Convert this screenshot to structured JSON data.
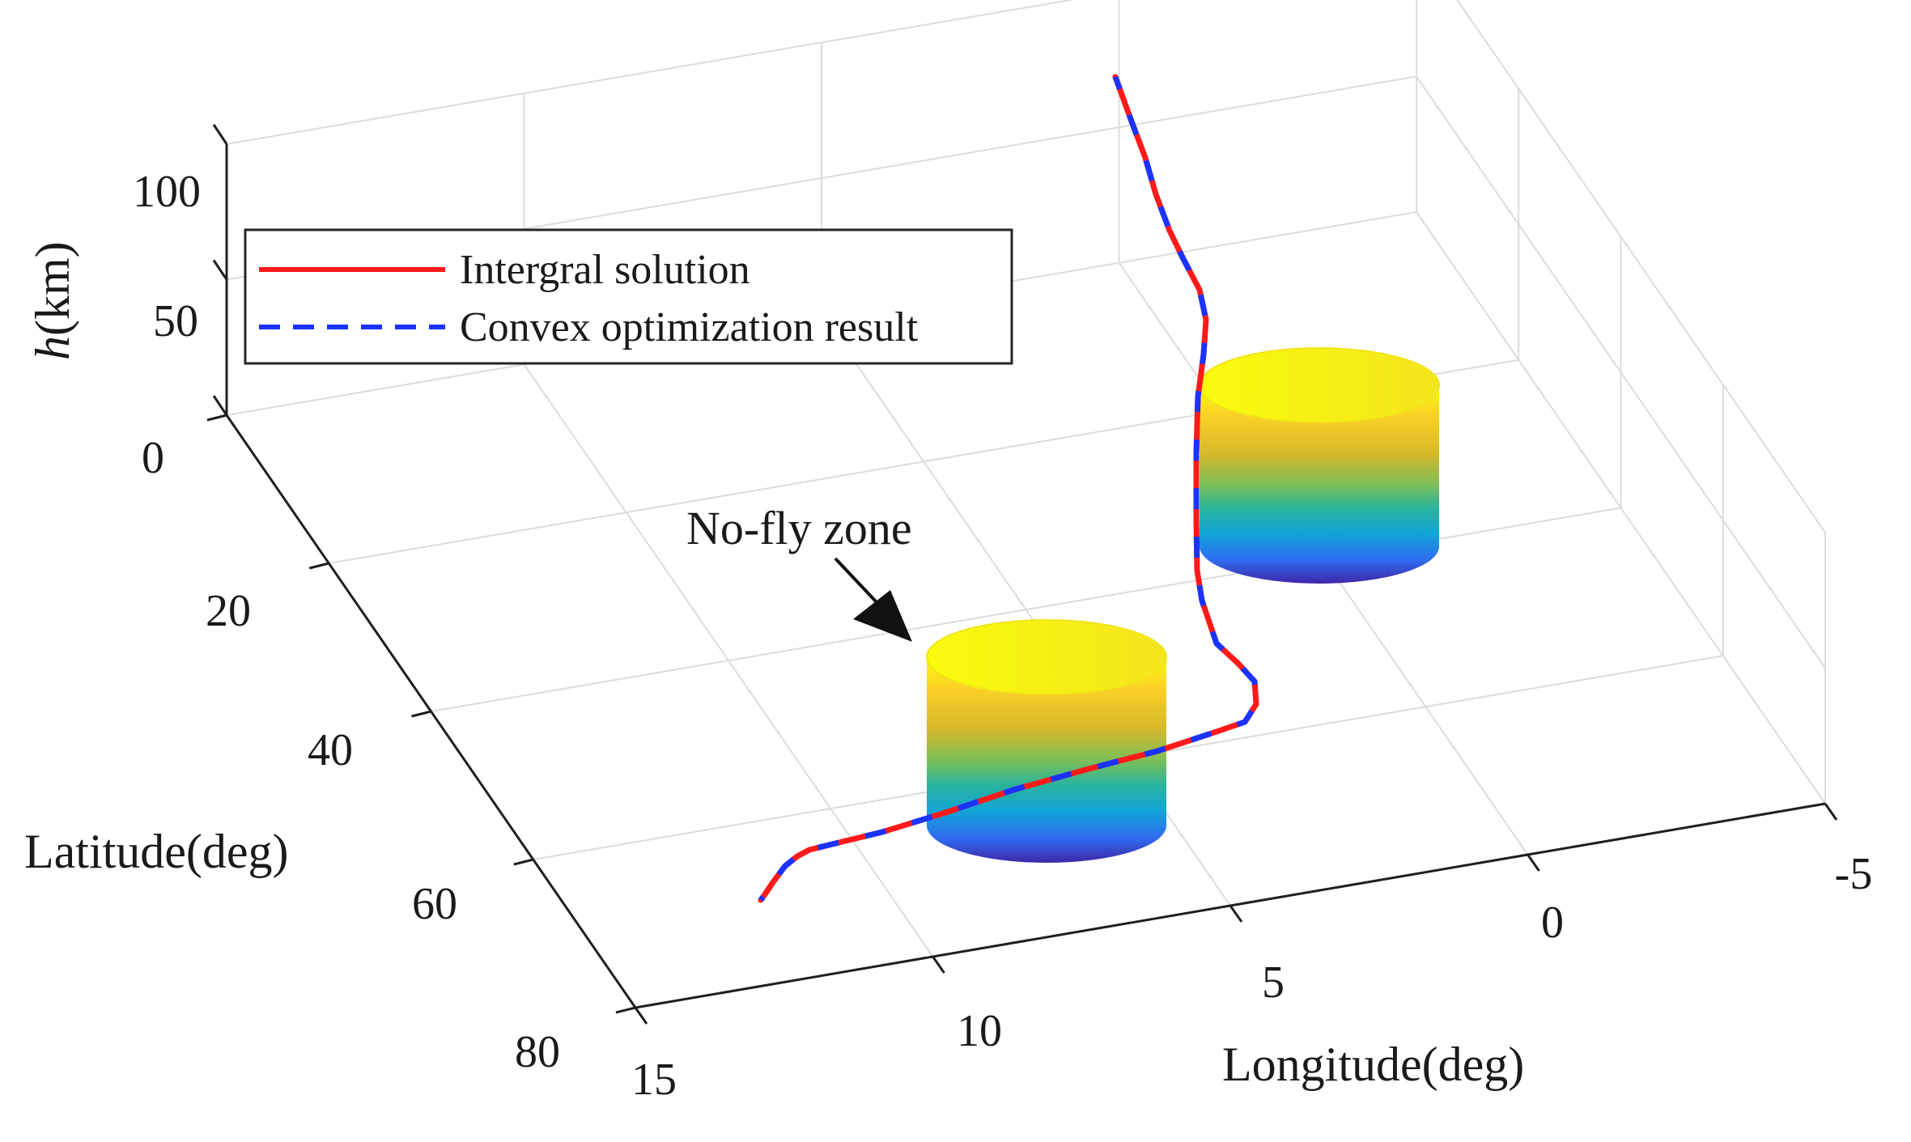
{
  "chart_data": {
    "type": "line",
    "projection": "3d",
    "title": "",
    "xlabel": "Longitude(deg)",
    "ylabel": "Latitude(deg)",
    "zlabel_italic": "h",
    "zlabel_unit": "(km)",
    "xlim": [
      -5,
      15
    ],
    "ylim": [
      0,
      80
    ],
    "zlim": [
      0,
      100
    ],
    "xticks": [
      "15",
      "10",
      "5",
      "0",
      "-5"
    ],
    "yticks": [
      "0",
      "20",
      "40",
      "60",
      "80"
    ],
    "zticks": [
      "0",
      "50",
      "100"
    ],
    "grid": true,
    "box": true,
    "legend_placement": "top-left",
    "legend": [
      {
        "label": "Intergral solution",
        "color": "#ff1a1a",
        "style": "solid"
      },
      {
        "label": "Convex optimization result",
        "color": "#1a33ff",
        "style": "dashed"
      }
    ],
    "annotation": {
      "text": "No-fly zone",
      "arrow": true
    },
    "series": [
      {
        "name": "Intergral solution",
        "color": "#ff1a1a",
        "style": "solid",
        "points": [
          [
            -1.0,
            -3,
            100
          ],
          [
            -1.5,
            -1,
            90
          ],
          [
            -1.8,
            1,
            80
          ],
          [
            -2.2,
            3,
            68
          ],
          [
            -2.4,
            6,
            55
          ],
          [
            -1.8,
            10,
            40
          ],
          [
            -0.6,
            14,
            25
          ],
          [
            0.2,
            18,
            12
          ],
          [
            0.5,
            22,
            0
          ],
          [
            0.6,
            26,
            0
          ],
          [
            0.6,
            34,
            0
          ],
          [
            0.6,
            38,
            0
          ],
          [
            0.7,
            42,
            0
          ],
          [
            1.2,
            45,
            0
          ],
          [
            1.9,
            47,
            0
          ],
          [
            2.4,
            50,
            0
          ],
          [
            3.0,
            54,
            0
          ],
          [
            4.0,
            58,
            0
          ],
          [
            5.0,
            61,
            0
          ],
          [
            6.5,
            64,
            0
          ],
          [
            8.0,
            67,
            0
          ],
          [
            9.2,
            69,
            0
          ],
          [
            10.0,
            70,
            0
          ],
          [
            10.8,
            71,
            0
          ],
          [
            11.2,
            73,
            0
          ],
          [
            11.8,
            76,
            0
          ],
          [
            12.4,
            80,
            0
          ]
        ]
      },
      {
        "name": "Convex optimization result",
        "color": "#1a33ff",
        "style": "dashed",
        "points": [
          [
            -1.0,
            -3,
            100
          ],
          [
            -1.5,
            -1,
            90
          ],
          [
            -1.8,
            1,
            80
          ],
          [
            -2.2,
            3,
            68
          ],
          [
            -2.4,
            6,
            55
          ],
          [
            -1.8,
            10,
            40
          ],
          [
            -0.6,
            14,
            25
          ],
          [
            0.2,
            18,
            12
          ],
          [
            0.5,
            22,
            0
          ],
          [
            0.6,
            26,
            0
          ],
          [
            0.6,
            34,
            0
          ],
          [
            0.6,
            38,
            0
          ],
          [
            0.7,
            42,
            0
          ],
          [
            1.2,
            45,
            0
          ],
          [
            1.9,
            47,
            0
          ],
          [
            2.4,
            50,
            0
          ],
          [
            3.0,
            54,
            0
          ],
          [
            4.0,
            58,
            0
          ],
          [
            5.0,
            61,
            0
          ],
          [
            6.5,
            64,
            0
          ],
          [
            8.0,
            67,
            0
          ],
          [
            9.2,
            69,
            0
          ],
          [
            10.0,
            70,
            0
          ],
          [
            10.8,
            71,
            0
          ],
          [
            11.2,
            73,
            0
          ],
          [
            11.8,
            76,
            0
          ],
          [
            12.4,
            80,
            0
          ]
        ]
      }
    ],
    "no_fly_zones": [
      {
        "center_lon": 0,
        "center_lat": 30,
        "radius_deg": 4,
        "height_km": 20
      },
      {
        "center_lon": 8,
        "center_lat": 60,
        "radius_deg": 4,
        "height_km": 20
      }
    ],
    "colormap": [
      "#3e26a8",
      "#2f6cf0",
      "#12a4d8",
      "#2ab49c",
      "#7cbf57",
      "#d6b82c",
      "#fcd126",
      "#f9fb0e"
    ]
  }
}
